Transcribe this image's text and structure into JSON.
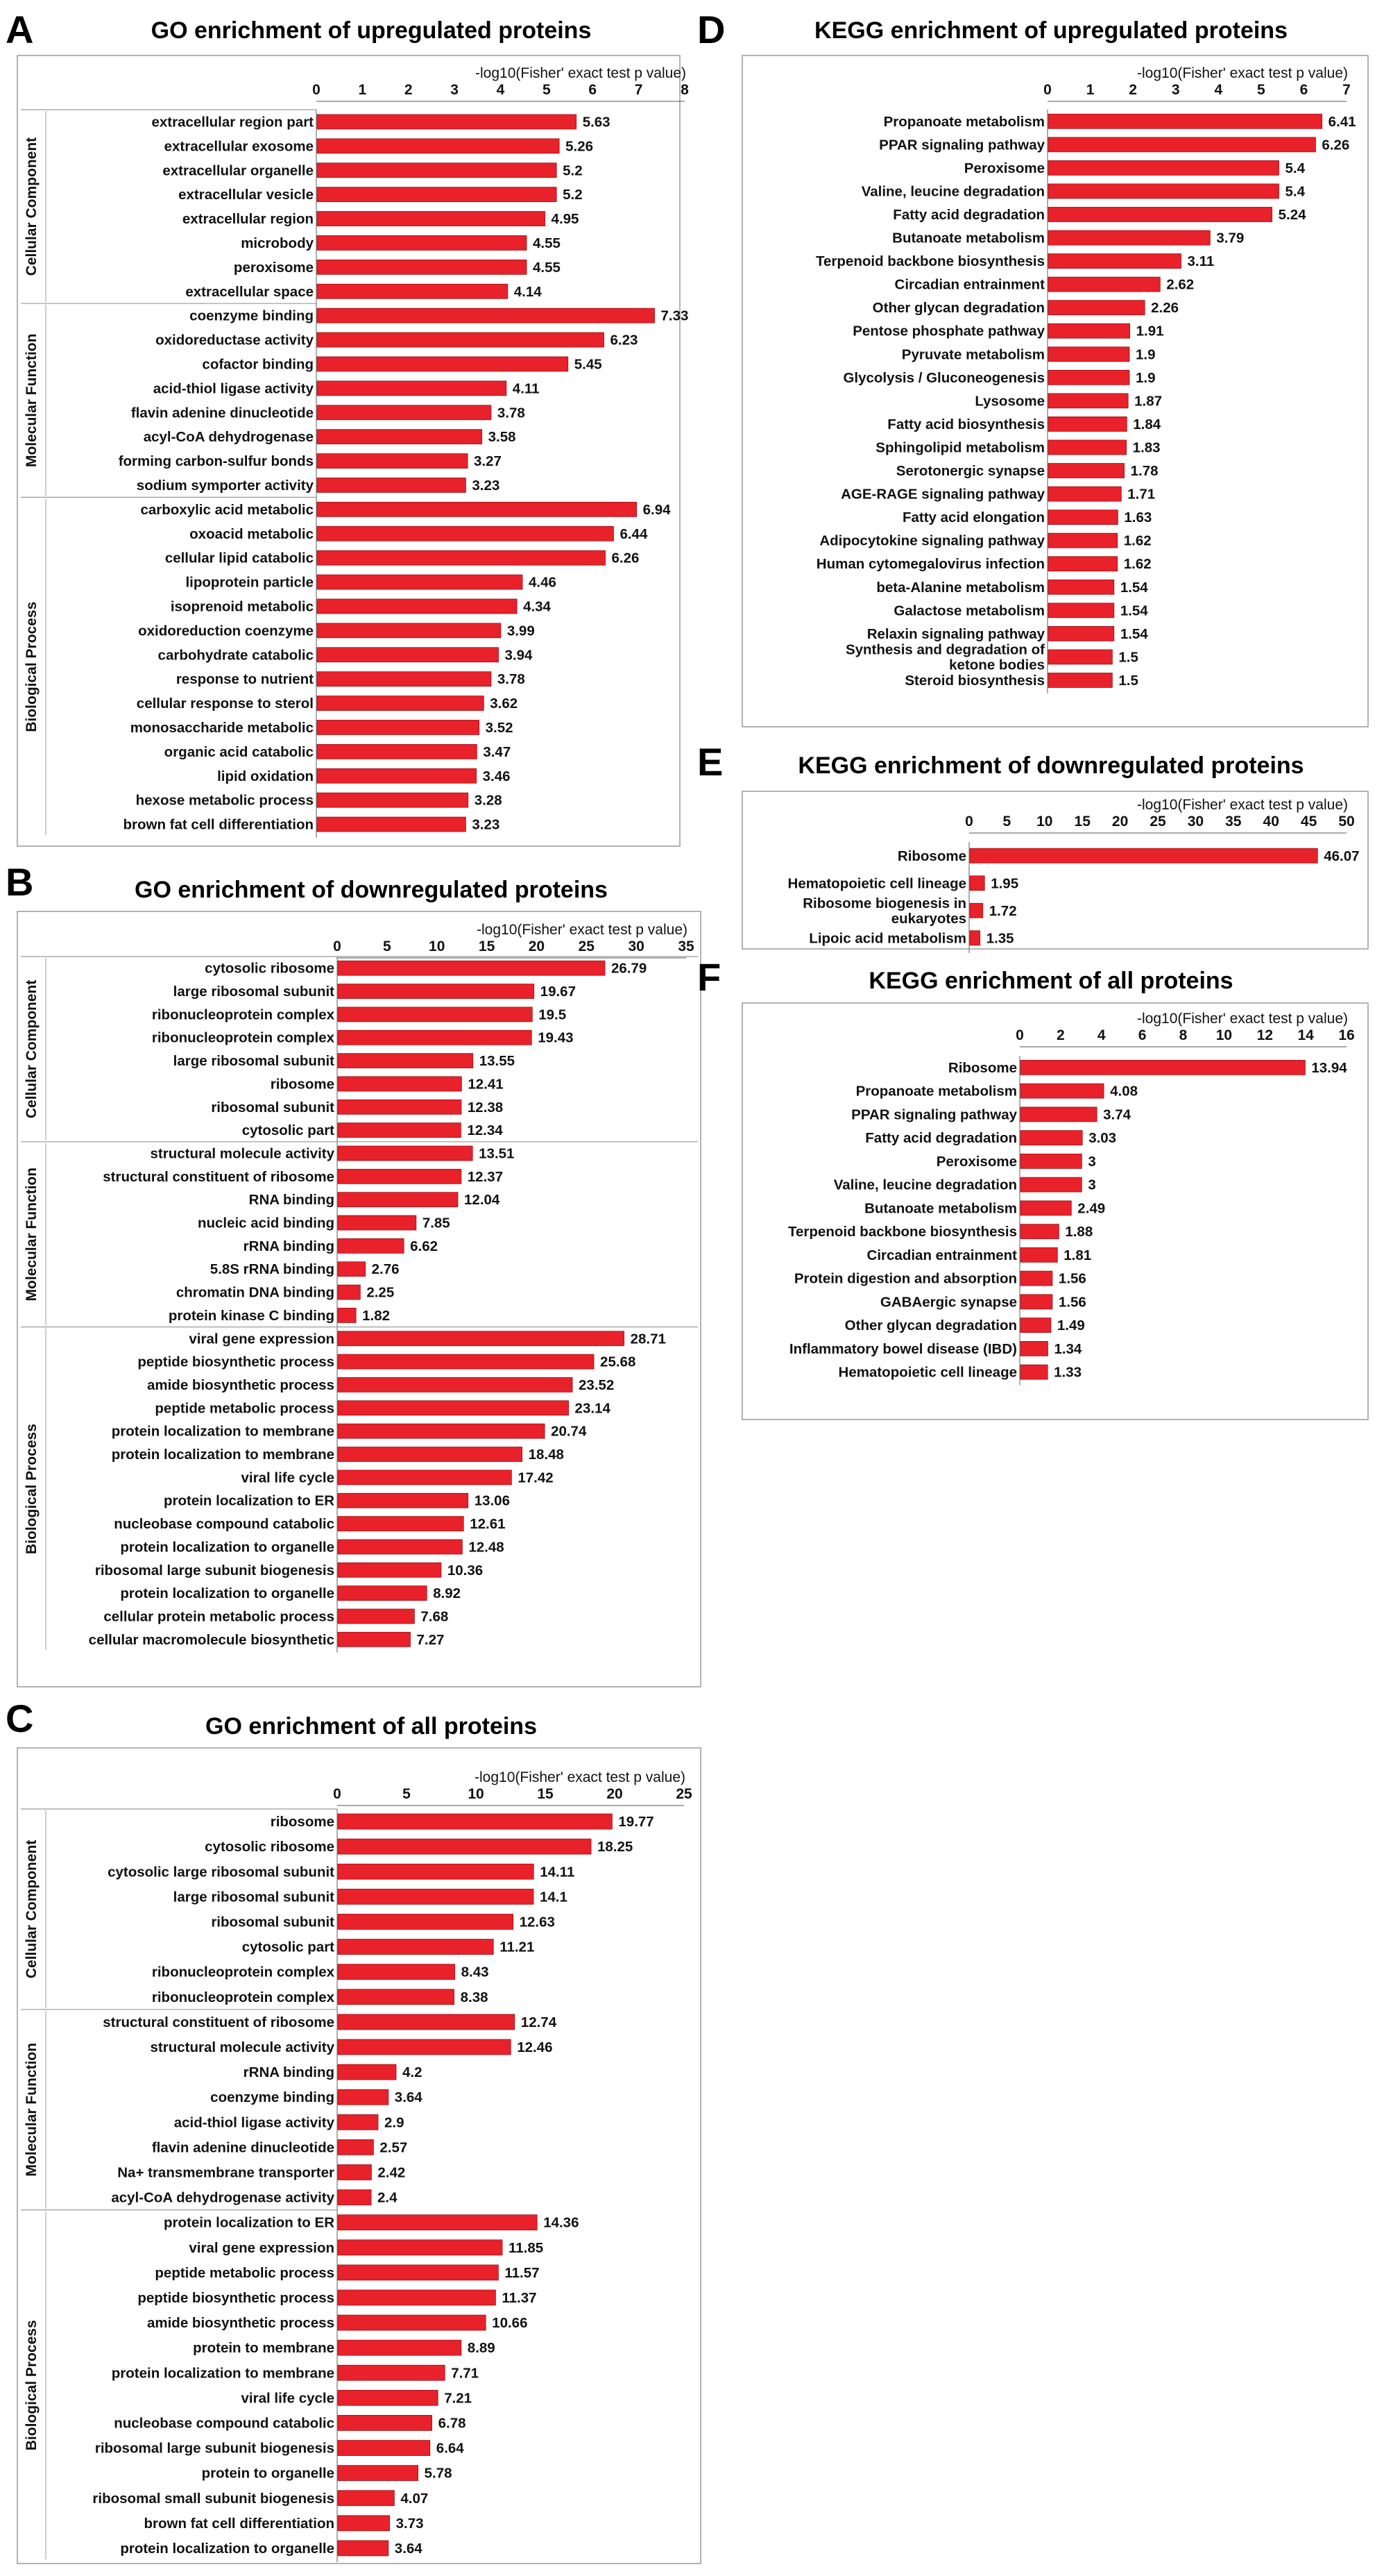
{
  "chart_data": [
    {
      "panel": "A",
      "type": "bar",
      "orientation": "horizontal",
      "title": "GO enrichment of upregulated proteins",
      "xlabel": "-log10(Fisher' exact test p value)",
      "ylabel": "",
      "xlim": [
        0,
        8
      ],
      "xticks": [
        0,
        1,
        2,
        3,
        4,
        5,
        6,
        7,
        8
      ],
      "groups": [
        {
          "name": "Cellular Component",
          "categories": [
            "extracellular region part",
            "extracellular exosome",
            "extracellular organelle",
            "extracellular vesicle",
            "extracellular region",
            "microbody",
            "peroxisome",
            "extracellular space"
          ],
          "values": [
            5.63,
            5.26,
            5.2,
            5.2,
            4.95,
            4.55,
            4.55,
            4.14
          ]
        },
        {
          "name": "Molecular Function",
          "categories": [
            "coenzyme binding",
            "oxidoreductase activity",
            "cofactor binding",
            "acid-thiol ligase activity",
            "flavin adenine dinucleotide",
            "acyl-CoA dehydrogenase",
            "forming carbon-sulfur bonds",
            "sodium symporter activity"
          ],
          "values": [
            7.33,
            6.23,
            5.45,
            4.11,
            3.78,
            3.58,
            3.27,
            3.23
          ]
        },
        {
          "name": "Biological Process",
          "categories": [
            "carboxylic acid metabolic",
            "oxoacid metabolic",
            "cellular lipid catabolic",
            "lipoprotein particle",
            "isoprenoid metabolic",
            "oxidoreduction coenzyme",
            "carbohydrate catabolic",
            "response to nutrient",
            "cellular response to sterol",
            "monosaccharide metabolic",
            "organic acid catabolic",
            "lipid oxidation",
            "hexose metabolic process",
            "brown fat cell differentiation"
          ],
          "values": [
            6.94,
            6.44,
            6.26,
            4.46,
            4.34,
            3.99,
            3.94,
            3.78,
            3.62,
            3.52,
            3.47,
            3.46,
            3.28,
            3.23
          ]
        }
      ]
    },
    {
      "panel": "B",
      "type": "bar",
      "orientation": "horizontal",
      "title": "GO enrichment of downregulated proteins",
      "xlabel": "-log10(Fisher' exact test p value)",
      "ylabel": "",
      "xlim": [
        0,
        35
      ],
      "xticks": [
        0,
        5,
        10,
        15,
        20,
        25,
        30,
        35
      ],
      "groups": [
        {
          "name": "Cellular Component",
          "categories": [
            "cytosolic ribosome",
            "large ribosomal subunit",
            "ribonucleoprotein complex",
            "ribonucleoprotein complex",
            "large ribosomal subunit",
            "ribosome",
            "ribosomal subunit",
            "cytosolic part"
          ],
          "values": [
            26.79,
            19.67,
            19.5,
            19.43,
            13.55,
            12.41,
            12.38,
            12.34
          ]
        },
        {
          "name": "Molecular Function",
          "categories": [
            "structural molecule activity",
            "structural constituent of ribosome",
            "RNA binding",
            "nucleic acid binding",
            "rRNA binding",
            "5.8S rRNA binding",
            "chromatin DNA binding",
            "protein kinase C binding"
          ],
          "values": [
            13.51,
            12.37,
            12.04,
            7.85,
            6.62,
            2.76,
            2.25,
            1.82
          ]
        },
        {
          "name": "Biological Process",
          "categories": [
            "viral gene expression",
            "peptide biosynthetic process",
            "amide biosynthetic process",
            "peptide metabolic process",
            "protein localization to membrane",
            "protein localization to membrane",
            "viral life cycle",
            "protein localization to ER",
            "nucleobase compound catabolic",
            "protein localization to organelle",
            "ribosomal large subunit biogenesis",
            "protein localization to organelle",
            "cellular protein metabolic process",
            "cellular macromolecule biosynthetic"
          ],
          "values": [
            28.71,
            25.68,
            23.52,
            23.14,
            20.74,
            18.48,
            17.42,
            13.06,
            12.61,
            12.48,
            10.36,
            8.92,
            7.68,
            7.27
          ]
        }
      ]
    },
    {
      "panel": "C",
      "type": "bar",
      "orientation": "horizontal",
      "title": "GO enrichment of all proteins",
      "xlabel": "-log10(Fisher' exact test p value)",
      "ylabel": "",
      "xlim": [
        0,
        25
      ],
      "xticks": [
        0,
        5,
        10,
        15,
        20,
        25
      ],
      "groups": [
        {
          "name": "Cellular Component",
          "categories": [
            "ribosome",
            "cytosolic ribosome",
            "cytosolic large ribosomal subunit",
            "large ribosomal subunit",
            "ribosomal subunit",
            "cytosolic part",
            "ribonucleoprotein complex",
            "ribonucleoprotein complex"
          ],
          "values": [
            19.77,
            18.25,
            14.11,
            14.1,
            12.63,
            11.21,
            8.43,
            8.38
          ]
        },
        {
          "name": "Molecular Function",
          "categories": [
            "structural constituent of ribosome",
            "structural molecule activity",
            "rRNA binding",
            "coenzyme binding",
            "acid-thiol ligase activity",
            "flavin adenine dinucleotide",
            "Na+ transmembrane transporter",
            "acyl-CoA dehydrogenase activity"
          ],
          "values": [
            12.74,
            12.46,
            4.2,
            3.64,
            2.9,
            2.57,
            2.42,
            2.4
          ]
        },
        {
          "name": "Biological Process",
          "categories": [
            "protein localization to ER",
            "viral gene expression",
            "peptide metabolic process",
            "peptide biosynthetic process",
            "amide biosynthetic process",
            "protein  to membrane",
            "protein localization to membrane",
            "viral life cycle",
            "nucleobase compound catabolic",
            "ribosomal large subunit biogenesis",
            "protein to organelle",
            "ribosomal small subunit biogenesis",
            "brown fat cell differentiation",
            "protein localization to organelle"
          ],
          "values": [
            14.36,
            11.85,
            11.57,
            11.37,
            10.66,
            8.89,
            7.71,
            7.21,
            6.78,
            6.64,
            5.78,
            4.07,
            3.73,
            3.64
          ]
        }
      ]
    },
    {
      "panel": "D",
      "type": "bar",
      "orientation": "horizontal",
      "title": "KEGG enrichment of upregulated proteins",
      "xlabel": "-log10(Fisher' exact test p value)",
      "ylabel": "",
      "xlim": [
        0,
        7
      ],
      "xticks": [
        0,
        1,
        2,
        3,
        4,
        5,
        6,
        7
      ],
      "categories": [
        "Propanoate metabolism",
        "PPAR signaling pathway",
        "Peroxisome",
        "Valine, leucine degradation",
        "Fatty acid degradation",
        "Butanoate metabolism",
        "Terpenoid backbone biosynthesis",
        "Circadian entrainment",
        "Other glycan degradation",
        "Pentose phosphate pathway",
        "Pyruvate metabolism",
        "Glycolysis / Gluconeogenesis",
        "Lysosome",
        "Fatty acid biosynthesis",
        "Sphingolipid metabolism",
        "Serotonergic synapse",
        "AGE-RAGE signaling pathway",
        "Fatty acid elongation",
        "Adipocytokine signaling pathway",
        "Human cytomegalovirus infection",
        "beta-Alanine metabolism",
        "Galactose metabolism",
        "Relaxin signaling pathway",
        "Synthesis and degradation of ketone bodies",
        "Steroid biosynthesis"
      ],
      "values": [
        6.41,
        6.26,
        5.4,
        5.4,
        5.24,
        3.79,
        3.11,
        2.62,
        2.26,
        1.91,
        1.9,
        1.9,
        1.87,
        1.84,
        1.83,
        1.78,
        1.71,
        1.63,
        1.62,
        1.62,
        1.54,
        1.54,
        1.54,
        1.5,
        1.5
      ]
    },
    {
      "panel": "E",
      "type": "bar",
      "orientation": "horizontal",
      "title": "KEGG enrichment of downregulated proteins",
      "xlabel": "-log10(Fisher' exact test p value)",
      "ylabel": "",
      "xlim": [
        0,
        50
      ],
      "xticks": [
        0,
        5,
        10,
        15,
        20,
        25,
        30,
        35,
        40,
        45,
        50
      ],
      "categories": [
        "Ribosome",
        "Hematopoietic cell lineage",
        "Ribosome biogenesis in eukaryotes",
        "Lipoic acid metabolism"
      ],
      "values": [
        46.07,
        1.95,
        1.72,
        1.35
      ]
    },
    {
      "panel": "F",
      "type": "bar",
      "orientation": "horizontal",
      "title": "KEGG enrichment of all proteins",
      "xlabel": "-log10(Fisher' exact test p value)",
      "ylabel": "",
      "xlim": [
        0,
        16
      ],
      "xticks": [
        0,
        2,
        4,
        6,
        8,
        10,
        12,
        14,
        16
      ],
      "categories": [
        "Ribosome",
        "Propanoate metabolism",
        "PPAR signaling pathway",
        "Fatty acid degradation",
        "Peroxisome",
        "Valine, leucine degradation",
        "Butanoate metabolism",
        "Terpenoid backbone biosynthesis",
        "Circadian entrainment",
        "Protein digestion and absorption",
        "GABAergic synapse",
        "Other glycan degradation",
        "Inflammatory bowel disease (IBD)",
        "Hematopoietic cell lineage"
      ],
      "values": [
        13.94,
        4.08,
        3.74,
        3.03,
        3,
        3,
        2.49,
        1.88,
        1.81,
        1.56,
        1.56,
        1.49,
        1.34,
        1.33
      ]
    }
  ]
}
